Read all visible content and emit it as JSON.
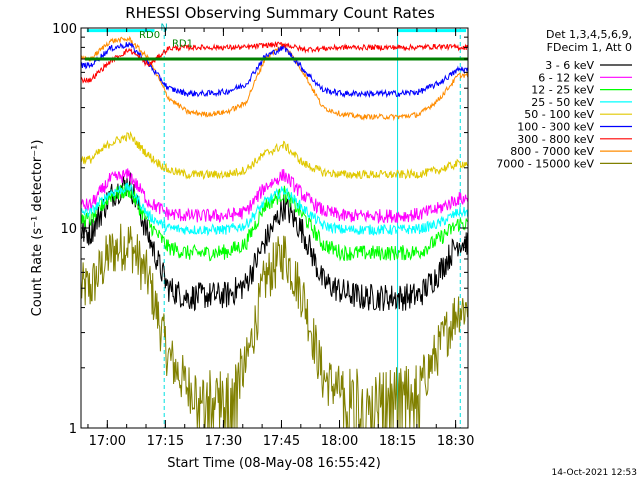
{
  "chart_data": {
    "type": "line",
    "title": "RHESSI Observing Summary Count Rates",
    "xlabel": "Start Time (08-May-08 16:55:42)",
    "ylabel": "Count Rate (s⁻¹ detector⁻¹)",
    "y_scale": "log",
    "ylim": [
      1,
      100
    ],
    "xlim_min": [
      -2.5,
      97.5
    ],
    "x_ticks": [
      {
        "value": 4.3,
        "label": "17:00"
      },
      {
        "value": 19.3,
        "label": "17:15"
      },
      {
        "value": 34.3,
        "label": "17:30"
      },
      {
        "value": 49.3,
        "label": "17:45"
      },
      {
        "value": 64.3,
        "label": "18:00"
      },
      {
        "value": 79.3,
        "label": "18:15"
      },
      {
        "value": 94.3,
        "label": "18:30"
      }
    ],
    "y_ticks": [
      {
        "value": 1,
        "label": "1"
      },
      {
        "value": 10,
        "label": "10"
      },
      {
        "value": 100,
        "label": "100"
      }
    ],
    "legend_header": [
      "Det 1,3,4,5,6,9,",
      "FDecim 1, Att 0"
    ],
    "legend_position": "right",
    "timestamp": "14-Oct-2021 12:53",
    "night_intervals_min": [
      [
        18.5,
        40.5
      ],
      [
        65.5,
        89.0
      ]
    ],
    "saa_vlines_min": [
      -2.5,
      19.0,
      95.5
    ],
    "flag_labels": [
      {
        "text": "N",
        "x_min": 18.0,
        "y": 97
      },
      {
        "text": "RD0",
        "x_min": 12.5,
        "y": 89
      },
      {
        "text": "RD1",
        "x_min": 21.0,
        "y": 81
      }
    ],
    "cyan_flag_segments": [
      [
        -1.0,
        16.5
      ],
      [
        79.3,
        97.0
      ]
    ],
    "green_flag_segments": [
      [
        -1.5,
        20.5
      ],
      [
        20.5,
        97.5
      ]
    ],
    "series": [
      {
        "name": "3 - 6 keV",
        "color": "#000000",
        "x": [
          0,
          5,
          10,
          15,
          20,
          25,
          30,
          35,
          40,
          45,
          50,
          55,
          60,
          65,
          70,
          75,
          80,
          85,
          90,
          95
        ],
        "y": [
          9.5,
          14.5,
          17.0,
          9.0,
          5.0,
          4.5,
          4.6,
          4.6,
          5.2,
          8.5,
          13.0,
          9.5,
          5.4,
          4.8,
          4.5,
          4.5,
          4.5,
          4.6,
          6.0,
          8.5
        ]
      },
      {
        "name": "6 - 12 keV",
        "color": "#ff00ff",
        "x": [
          0,
          5,
          10,
          15,
          20,
          25,
          30,
          35,
          40,
          45,
          50,
          55,
          60,
          65,
          70,
          75,
          80,
          85,
          90,
          95
        ],
        "y": [
          13.0,
          17.5,
          18.5,
          13.5,
          11.8,
          11.5,
          11.5,
          11.5,
          12.0,
          16.0,
          18.5,
          14.5,
          12.2,
          11.5,
          11.5,
          11.5,
          11.5,
          11.7,
          12.5,
          14.0
        ]
      },
      {
        "name": "12 - 25 keV",
        "color": "#00ff00",
        "x": [
          0,
          5,
          10,
          15,
          20,
          25,
          30,
          35,
          40,
          45,
          50,
          55,
          60,
          65,
          70,
          75,
          80,
          85,
          90,
          95
        ],
        "y": [
          11.0,
          14.5,
          15.5,
          10.5,
          8.0,
          7.5,
          7.5,
          7.6,
          8.3,
          13.0,
          15.0,
          11.5,
          8.3,
          7.5,
          7.5,
          7.5,
          7.5,
          7.6,
          8.8,
          10.5
        ]
      },
      {
        "name": "25 - 50 keV",
        "color": "#00ffff",
        "x": [
          0,
          5,
          10,
          15,
          20,
          25,
          30,
          35,
          40,
          45,
          50,
          55,
          60,
          65,
          70,
          75,
          80,
          85,
          90,
          95
        ],
        "y": [
          12.0,
          15.0,
          16.0,
          11.5,
          10.0,
          9.8,
          9.8,
          9.8,
          10.3,
          13.5,
          15.5,
          12.5,
          10.3,
          9.8,
          9.8,
          9.8,
          9.8,
          9.9,
          10.5,
          12.0
        ]
      },
      {
        "name": "50 - 100 keV",
        "color": "#e0c800",
        "x": [
          0,
          5,
          10,
          15,
          20,
          25,
          30,
          35,
          40,
          45,
          50,
          55,
          60,
          65,
          70,
          75,
          80,
          85,
          90,
          95
        ],
        "y": [
          22.0,
          26.5,
          29.0,
          23.0,
          19.5,
          18.5,
          18.5,
          18.5,
          19.5,
          23.5,
          26.0,
          21.0,
          19.0,
          18.5,
          18.5,
          18.5,
          18.5,
          18.6,
          19.5,
          21.0
        ]
      },
      {
        "name": "100 - 300 keV",
        "color": "#0000ff",
        "x": [
          0,
          5,
          10,
          15,
          20,
          25,
          30,
          35,
          40,
          45,
          50,
          55,
          60,
          65,
          70,
          75,
          80,
          85,
          90,
          95
        ],
        "y": [
          65,
          79,
          83,
          66,
          50,
          47,
          47,
          48,
          52,
          72,
          80,
          62,
          49,
          47,
          47,
          47,
          47,
          48,
          53,
          62
        ]
      },
      {
        "name": "300 - 800 keV",
        "color": "#ff0000",
        "x": [
          0,
          5,
          10,
          15,
          20,
          25,
          30,
          35,
          40,
          45,
          50,
          55,
          60,
          65,
          70,
          75,
          80,
          85,
          90,
          95
        ],
        "y": [
          55,
          68,
          78,
          65,
          79,
          80,
          80,
          80,
          80,
          82,
          83,
          78,
          79,
          80,
          80,
          80,
          80,
          80,
          81,
          80
        ]
      },
      {
        "name": "800 - 7000 keV",
        "color": "#ff8c00",
        "x": [
          0,
          5,
          10,
          15,
          20,
          25,
          30,
          35,
          40,
          45,
          50,
          55,
          60,
          65,
          70,
          75,
          80,
          85,
          90,
          95
        ],
        "y": [
          70,
          86,
          88,
          70,
          45,
          38,
          37,
          38,
          42,
          70,
          83,
          60,
          40,
          37,
          36,
          36,
          36,
          37,
          44,
          58
        ]
      },
      {
        "name": "7000 - 15000 keV",
        "color": "#808000",
        "x": [
          0,
          5,
          10,
          15,
          20,
          25,
          30,
          35,
          40,
          45,
          50,
          55,
          60,
          65,
          70,
          75,
          80,
          85,
          90,
          95
        ],
        "y": [
          5.0,
          7.5,
          8.5,
          5.5,
          2.3,
          1.6,
          1.5,
          1.5,
          2.0,
          5.5,
          7.5,
          4.5,
          1.8,
          1.5,
          1.5,
          1.5,
          1.5,
          1.6,
          2.5,
          4.0
        ]
      }
    ]
  }
}
